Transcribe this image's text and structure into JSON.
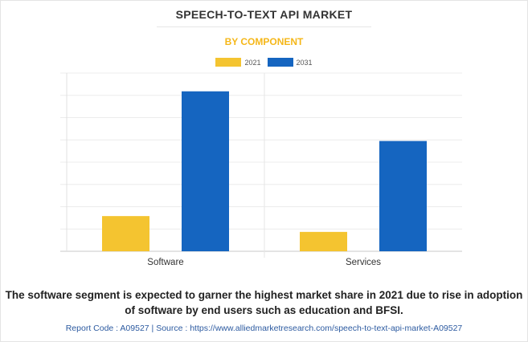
{
  "title": "SPEECH-TO-TEXT API MARKET",
  "subtitle": "BY COMPONENT",
  "description": "The software segment is expected to garner the highest market share in 2021 due to rise in adoption of software by end users such as education and BFSI.",
  "footer": "Report Code : A09527  |  Source : https://www.alliedmarketresearch.com/speech-to-text-api-market-A09527",
  "chart_data": {
    "type": "bar",
    "categories": [
      "Software",
      "Services"
    ],
    "series": [
      {
        "name": "2021",
        "color": "#f4c430",
        "values": [
          1.58,
          0.87
        ]
      },
      {
        "name": "2031",
        "color": "#1565c0",
        "values": [
          7.18,
          4.95
        ]
      }
    ],
    "ylim": [
      0,
      8
    ],
    "grid": true,
    "legend": "top-center",
    "y_tick_labels_shown": false
  }
}
